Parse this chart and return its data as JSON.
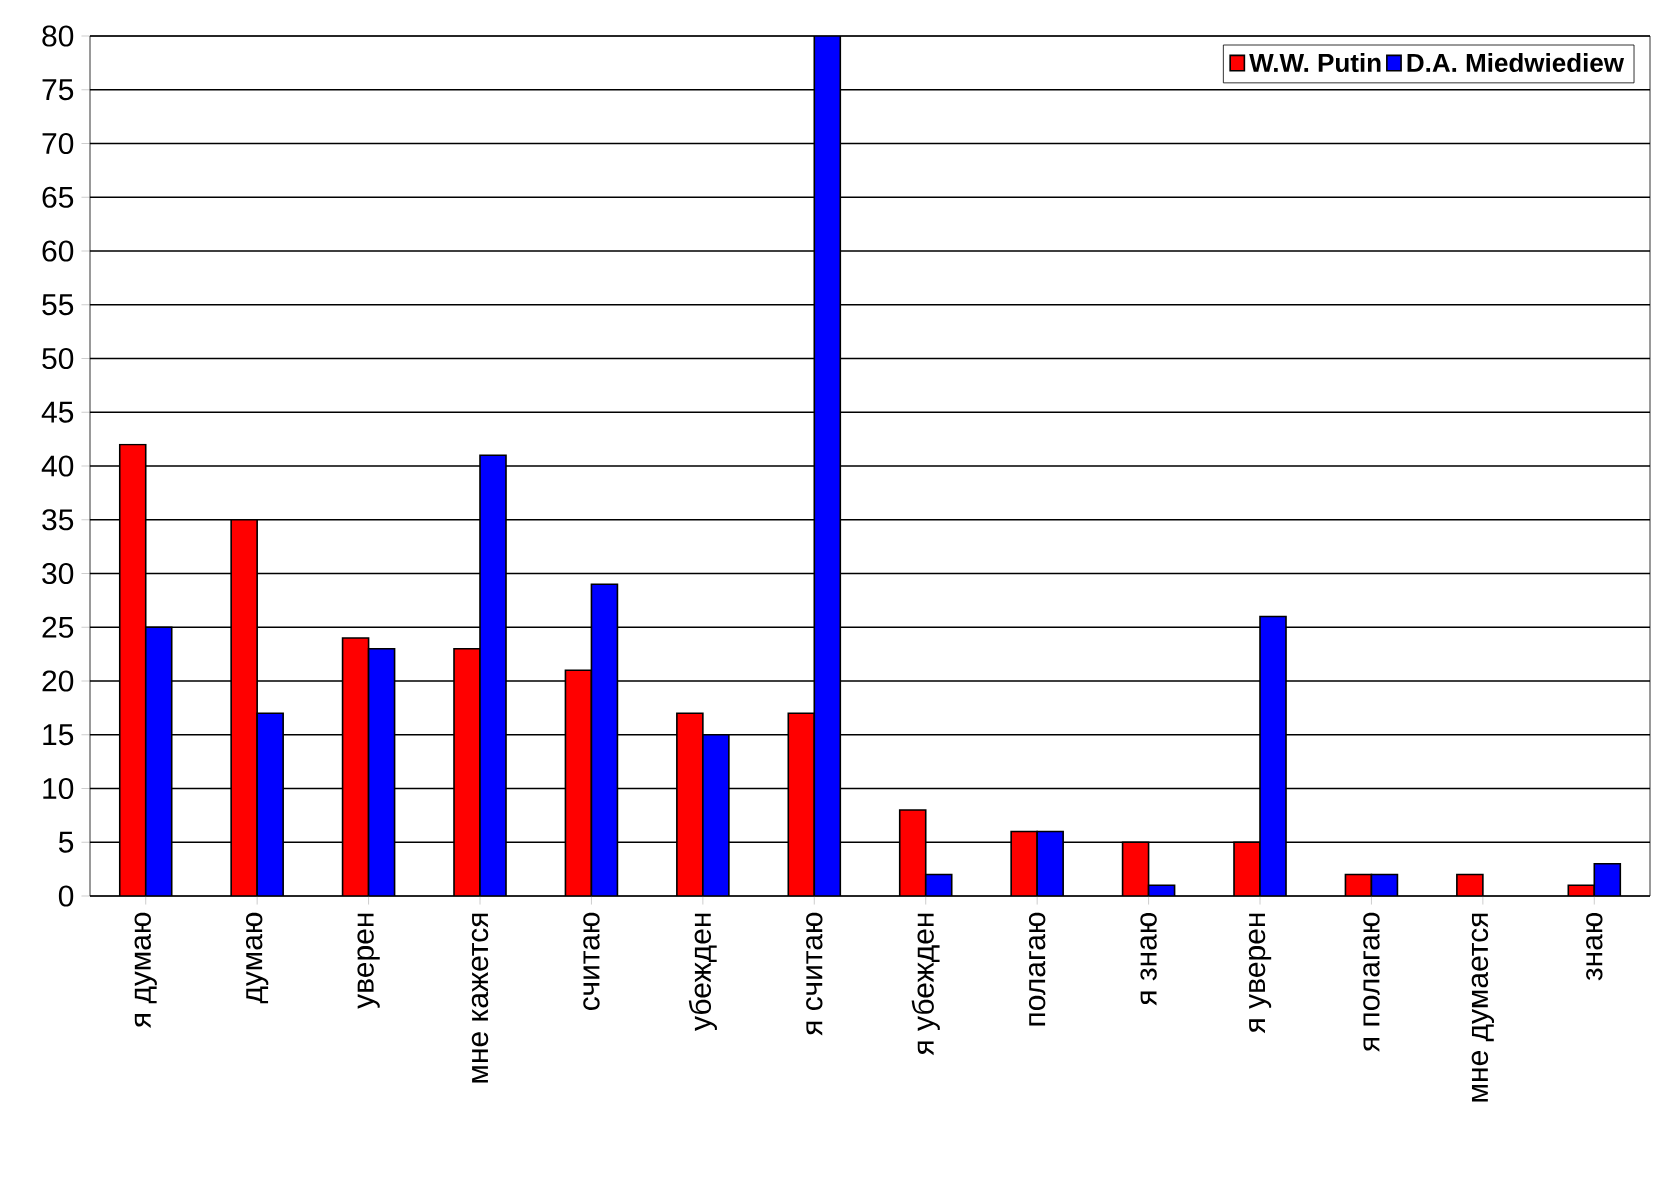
{
  "chart_data": {
    "type": "bar",
    "categories": [
      "я думаю",
      "думаю",
      "уверен",
      "мне кажется",
      "считаю",
      "убежден",
      "я считаю",
      "я убежден",
      "полагаю",
      "я знаю",
      "я уверен",
      "я полагаю",
      "мне думается",
      "знаю"
    ],
    "series": [
      {
        "name": "W.W. Putin",
        "color": "#ff0000",
        "values": [
          42,
          35,
          24,
          23,
          21,
          17,
          17,
          8,
          6,
          5,
          5,
          2,
          2,
          1
        ]
      },
      {
        "name": "D.A. Miedwiediew",
        "color": "#0000ff",
        "values": [
          25,
          17,
          23,
          41,
          29,
          15,
          80,
          2,
          6,
          1,
          26,
          2,
          null,
          3
        ]
      }
    ],
    "ylim": [
      0,
      80
    ],
    "yticks": [
      0,
      5,
      10,
      15,
      20,
      25,
      30,
      35,
      40,
      45,
      50,
      55,
      60,
      65,
      70,
      75,
      80
    ],
    "grid": "y",
    "legend": "top right"
  }
}
